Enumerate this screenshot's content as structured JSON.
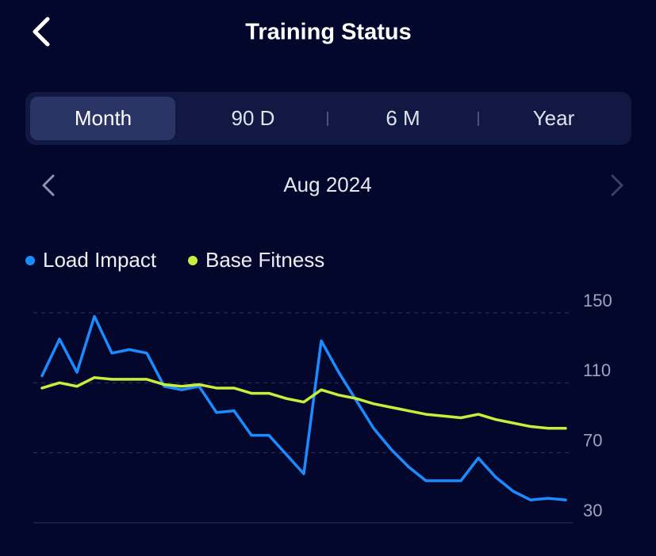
{
  "header": {
    "title": "Training Status"
  },
  "tabs": [
    "Month",
    "90 D",
    "6 M",
    "Year"
  ],
  "period": "Aug 2024",
  "chart_data": {
    "type": "line",
    "series": [
      {
        "name": "Load Impact",
        "color": "#1a8cff",
        "values": [
          114,
          135,
          116,
          148,
          127,
          129,
          127,
          108,
          106,
          108,
          93,
          94,
          80,
          80,
          69,
          58,
          134,
          116,
          100,
          84,
          72,
          62,
          54,
          54,
          54,
          67,
          56,
          48,
          43,
          44,
          43
        ]
      },
      {
        "name": "Base Fitness",
        "color": "#c6ee3c",
        "values": [
          107,
          110,
          108,
          113,
          112,
          112,
          112,
          109,
          108,
          109,
          107,
          107,
          104,
          104,
          101,
          99,
          106,
          103,
          101,
          98,
          96,
          94,
          92,
          91,
          90,
          92,
          89,
          87,
          85,
          84,
          84
        ]
      }
    ],
    "ylim": [
      30,
      150
    ],
    "yticks": [
      30,
      70,
      110,
      150
    ],
    "grid": true
  }
}
